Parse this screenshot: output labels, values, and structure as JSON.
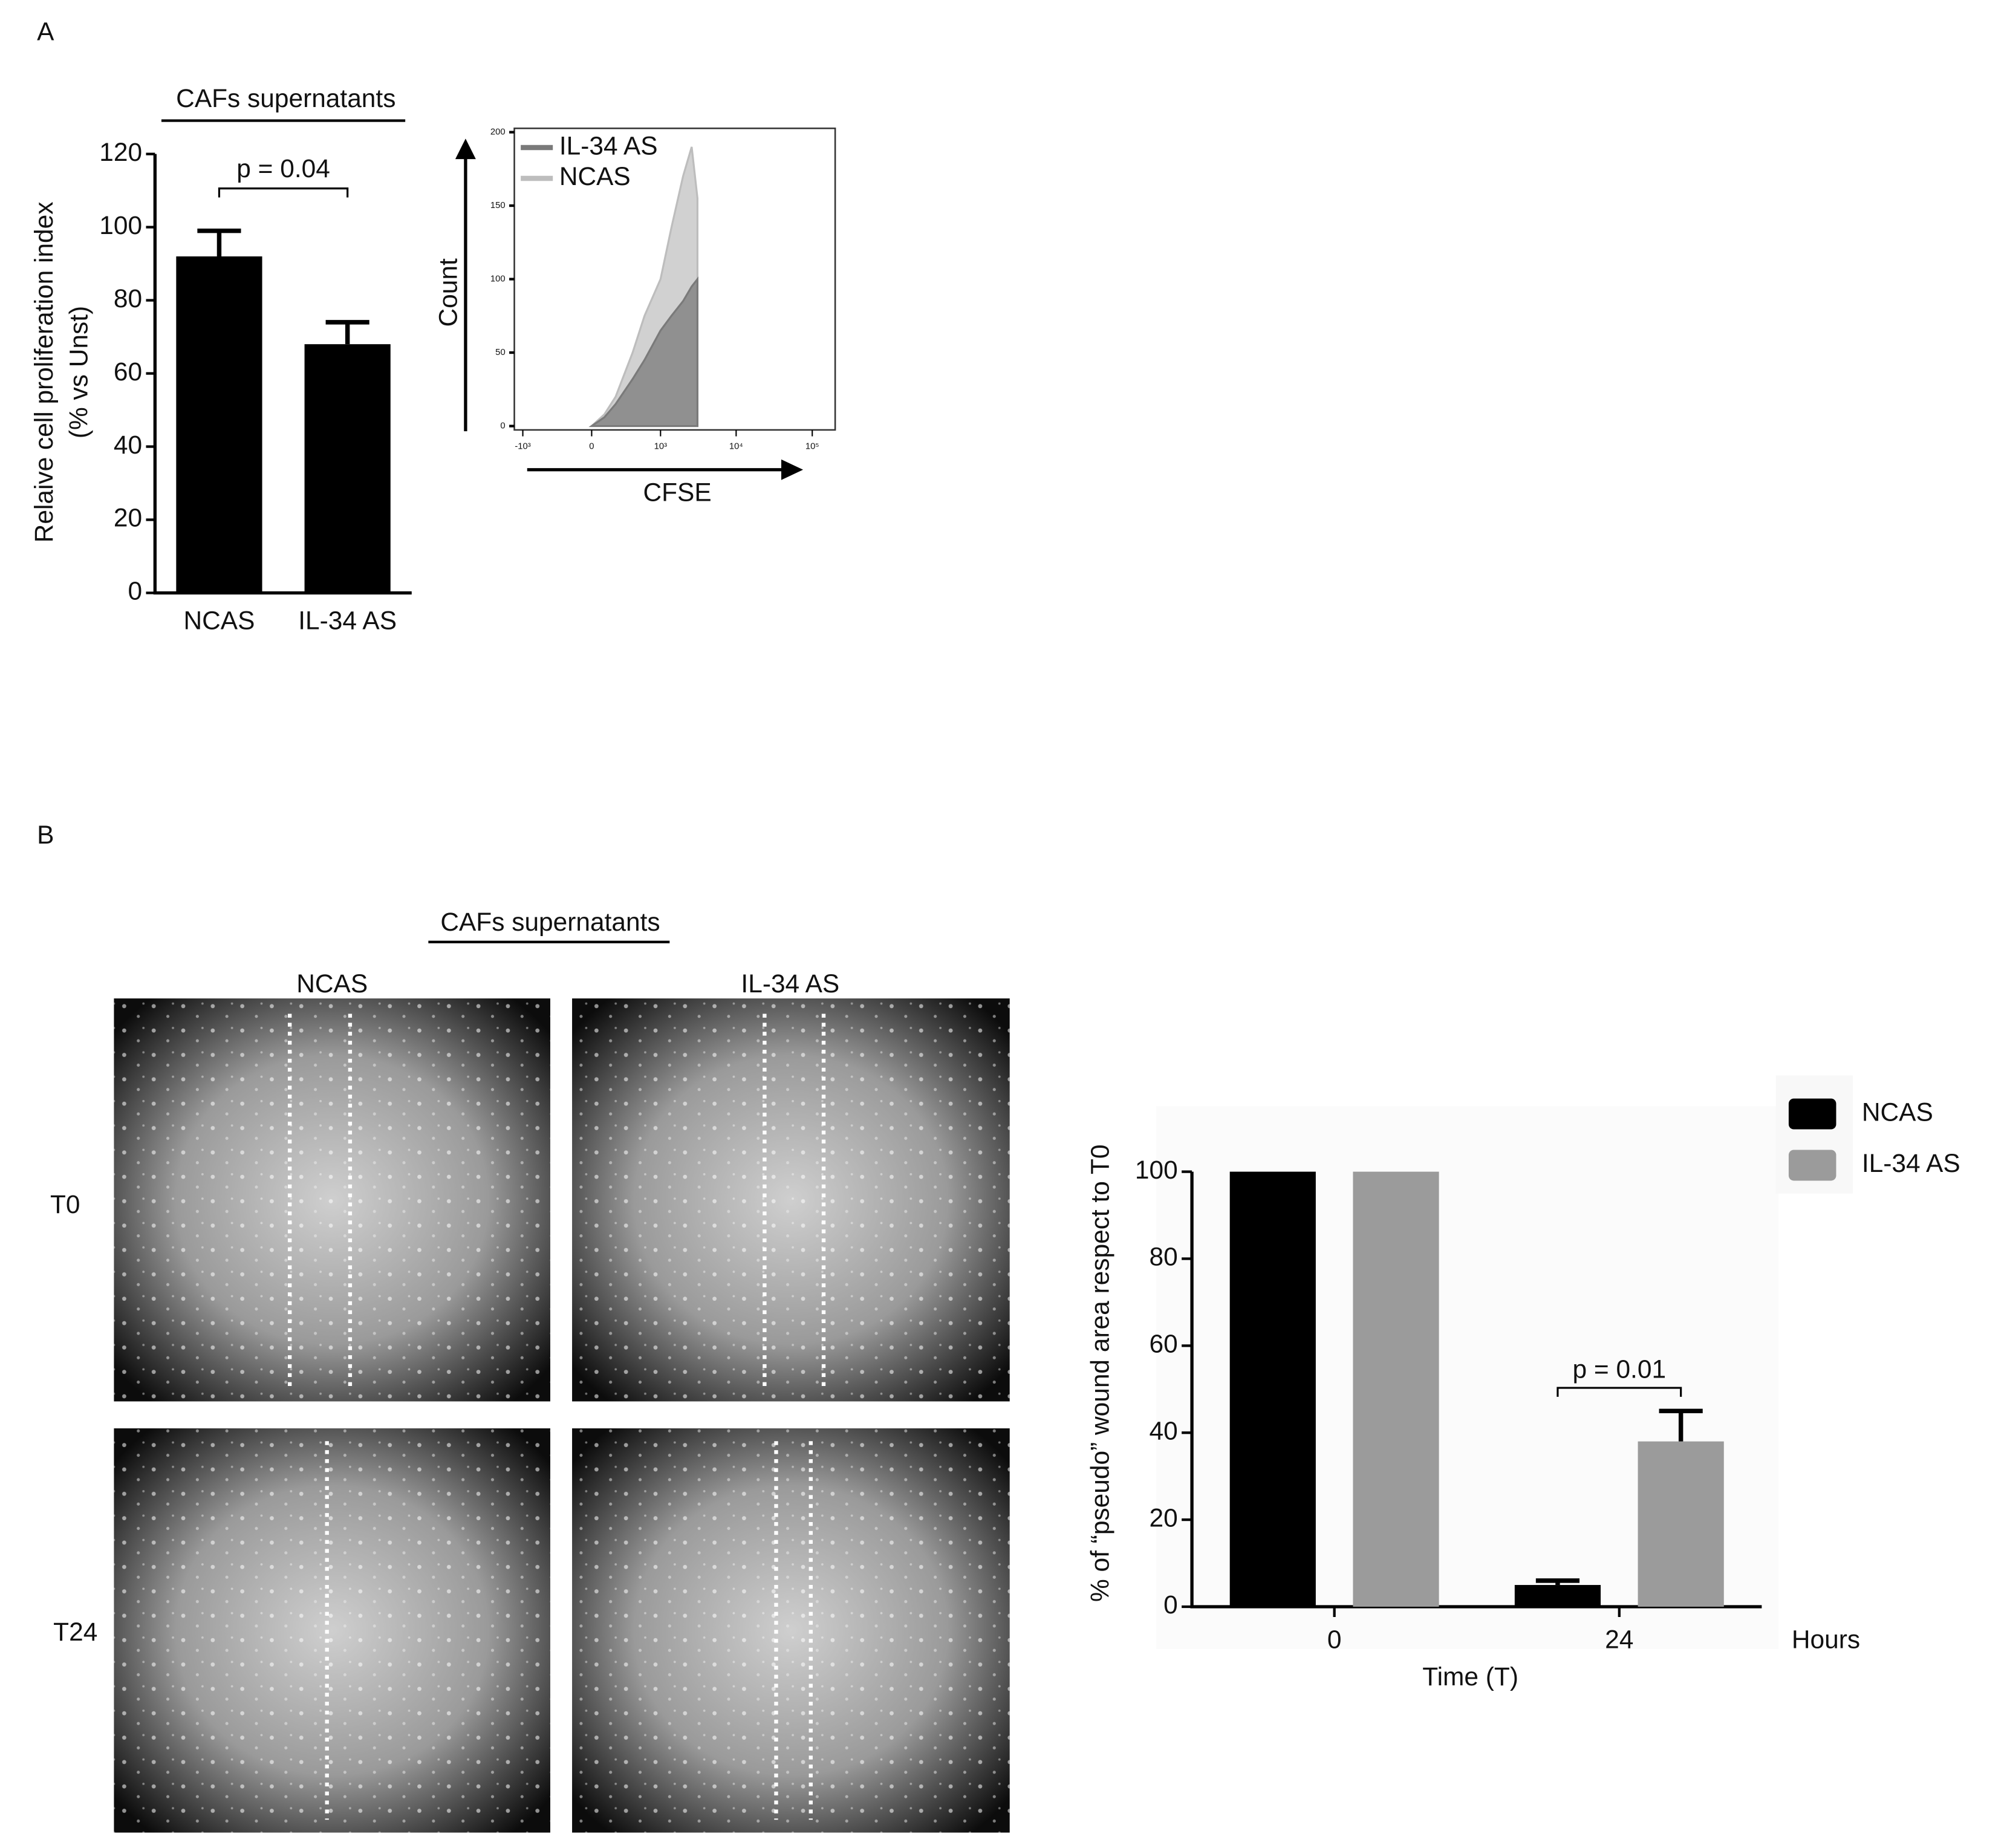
{
  "panel_labels": [
    "A",
    "B"
  ],
  "micrographs": {
    "title": "CAFs supernatants",
    "columns": [
      "NCAS",
      "IL-34 AS"
    ],
    "rows": [
      "T0",
      "T24"
    ]
  },
  "chart_data": [
    {
      "type": "bar",
      "title": "CAFs supernatants",
      "ylabel": [
        "Relaive cell proliferation index",
        "(% vs Unst)"
      ],
      "categories": [
        "NCAS",
        "IL-34 AS"
      ],
      "values": [
        92,
        68
      ],
      "errors": [
        7,
        6
      ],
      "color": "#000000",
      "ylim": [
        0,
        120
      ],
      "yticks": [
        0,
        20,
        40,
        60,
        80,
        100,
        120
      ],
      "annotation": "p = 0.04"
    },
    {
      "type": "area",
      "ylabel": "Count",
      "xlabel": "CFSE",
      "xscale": "biexponential",
      "x": [
        0,
        100,
        200,
        400,
        600,
        1000,
        1400,
        2000,
        2600,
        3100
      ],
      "series": [
        {
          "name": "IL-34 AS",
          "color": "#7a7a7a",
          "values": [
            0,
            6,
            15,
            32,
            45,
            65,
            75,
            85,
            95,
            100
          ]
        },
        {
          "name": "NCAS",
          "color": "#bdbdbd",
          "values": [
            0,
            8,
            20,
            50,
            75,
            100,
            135,
            170,
            190,
            155
          ]
        }
      ],
      "xlim": [
        -1300,
        200000
      ],
      "xticks": [
        {
          "value": -1000,
          "label": "-10³"
        },
        0,
        {
          "value": 1000,
          "label": "10³"
        },
        {
          "value": 10000,
          "label": "10⁴"
        },
        {
          "value": 100000,
          "label": "10⁵"
        }
      ],
      "ylim": [
        0,
        200
      ],
      "yticks": [
        0,
        50,
        100,
        150,
        200
      ]
    },
    {
      "type": "grouped_bar",
      "ylabel": "% of “pseudo” wound area respect to T0",
      "xlabel": "Time (T)",
      "xunit": "Hours",
      "categories": [
        "0",
        "24"
      ],
      "series": [
        {
          "name": "NCAS",
          "color": "#000000",
          "values": [
            100,
            5
          ],
          "errors": [
            null,
            1
          ]
        },
        {
          "name": "IL-34 AS",
          "color": "#9b9b9b",
          "values": [
            100,
            38
          ],
          "errors": [
            null,
            7
          ]
        }
      ],
      "ylim": [
        0,
        100
      ],
      "yticks": [
        0,
        20,
        40,
        60,
        80,
        100
      ],
      "annotation": "p = 0.01"
    }
  ]
}
